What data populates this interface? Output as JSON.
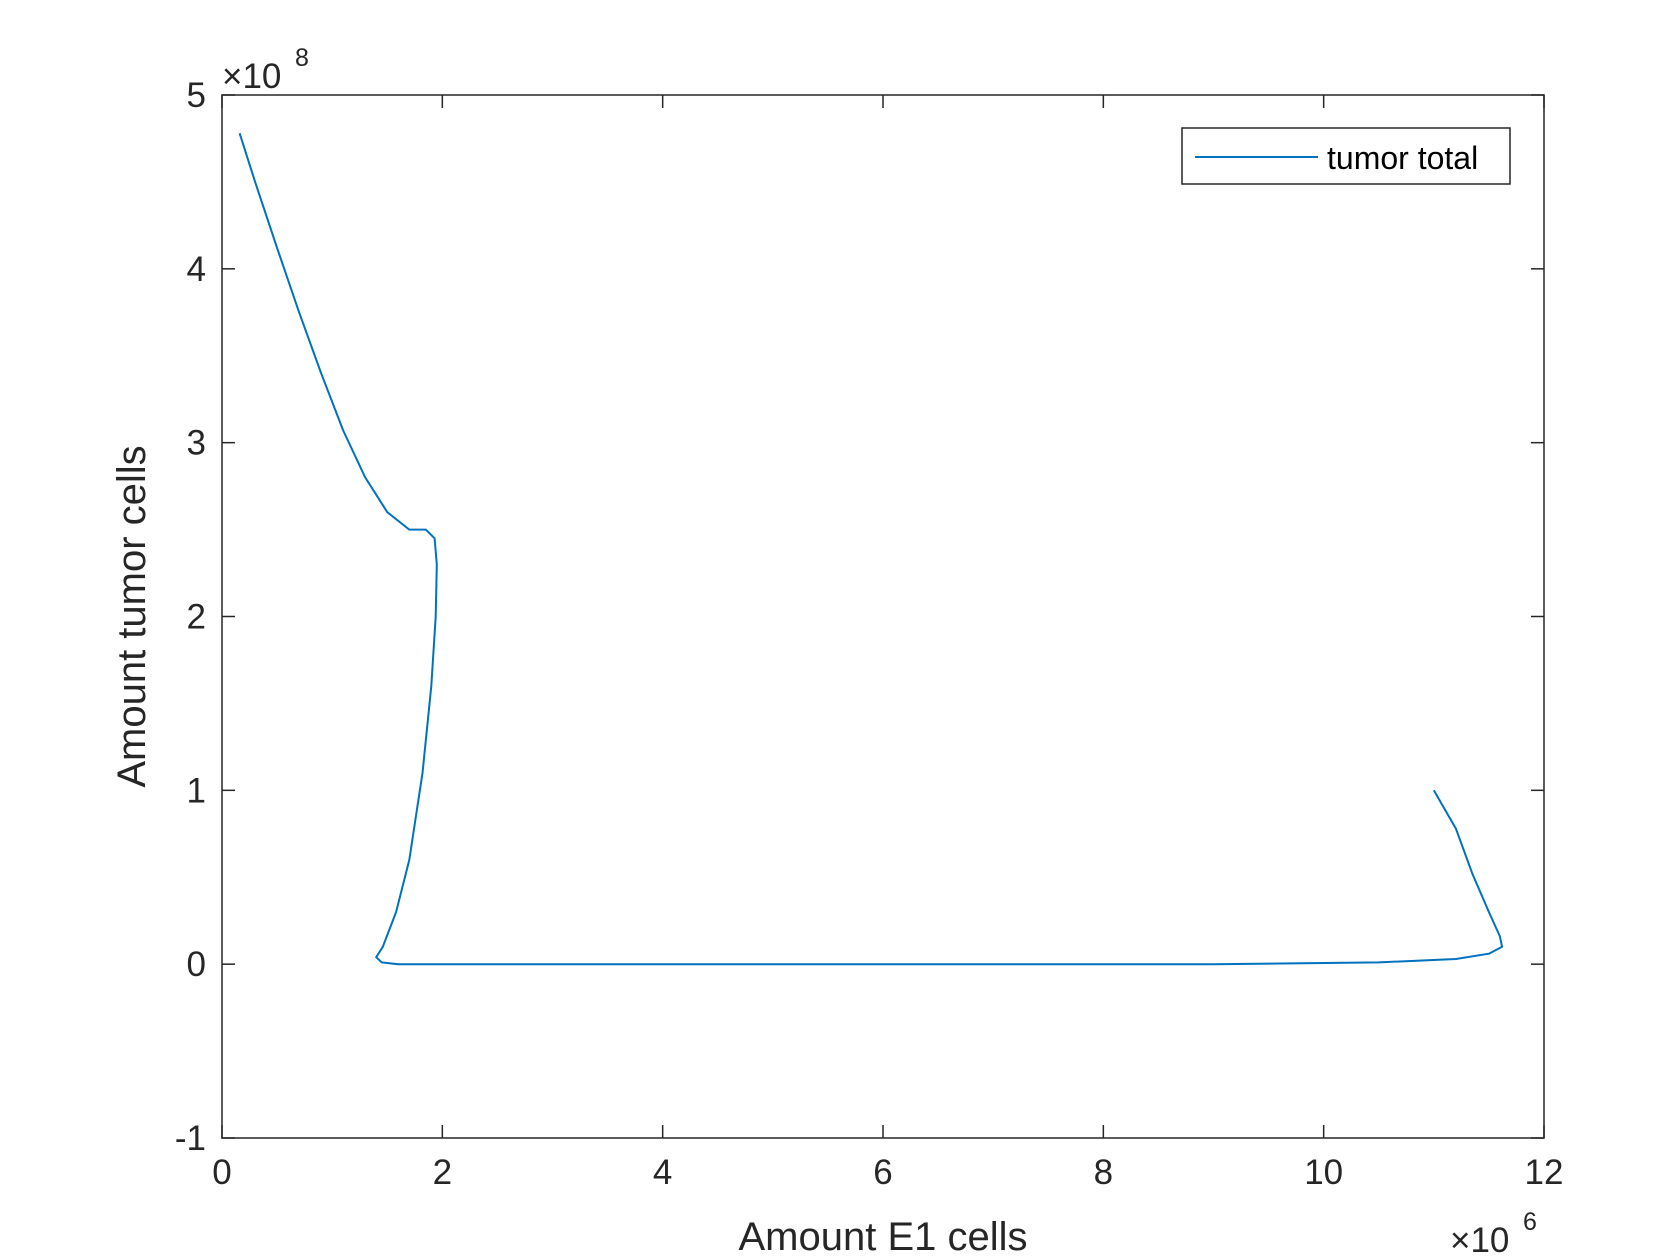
{
  "chart_data": {
    "type": "line",
    "xlabel": "Amount E1 cells",
    "ylabel": "Amount tumor cells",
    "x_multiplier_label": {
      "base": "×10",
      "exponent": "6"
    },
    "y_multiplier_label": {
      "base": "×10",
      "exponent": "8"
    },
    "xlim": [
      0,
      12
    ],
    "ylim": [
      -1,
      5
    ],
    "x_ticks": [
      0,
      2,
      4,
      6,
      8,
      10,
      12
    ],
    "x_tick_labels": [
      "0",
      "2",
      "4",
      "6",
      "8",
      "10",
      "12"
    ],
    "y_ticks": [
      -1,
      0,
      1,
      2,
      3,
      4,
      5
    ],
    "y_tick_labels": [
      "-1",
      "0",
      "1",
      "2",
      "3",
      "4",
      "5"
    ],
    "grid": false,
    "box": true,
    "legend_position": "top-right",
    "series": [
      {
        "name": "tumor total",
        "color": "#0072BD",
        "points": [
          [
            0.16,
            4.78
          ],
          [
            0.3,
            4.5
          ],
          [
            0.5,
            4.12
          ],
          [
            0.7,
            3.75
          ],
          [
            0.9,
            3.4
          ],
          [
            1.1,
            3.07
          ],
          [
            1.3,
            2.8
          ],
          [
            1.5,
            2.6
          ],
          [
            1.7,
            2.5
          ],
          [
            1.85,
            2.5
          ],
          [
            1.93,
            2.45
          ],
          [
            1.95,
            2.3
          ],
          [
            1.94,
            2.0
          ],
          [
            1.9,
            1.6
          ],
          [
            1.82,
            1.1
          ],
          [
            1.7,
            0.6
          ],
          [
            1.58,
            0.3
          ],
          [
            1.46,
            0.1
          ],
          [
            1.4,
            0.04
          ],
          [
            1.45,
            0.01
          ],
          [
            1.6,
            0.0
          ],
          [
            3.0,
            0.0
          ],
          [
            6.0,
            0.0
          ],
          [
            9.0,
            0.0
          ],
          [
            10.5,
            0.01
          ],
          [
            11.2,
            0.03
          ],
          [
            11.5,
            0.06
          ],
          [
            11.62,
            0.1
          ],
          [
            11.6,
            0.16
          ],
          [
            11.5,
            0.3
          ],
          [
            11.35,
            0.52
          ],
          [
            11.2,
            0.78
          ],
          [
            11.0,
            1.0
          ]
        ]
      }
    ]
  }
}
